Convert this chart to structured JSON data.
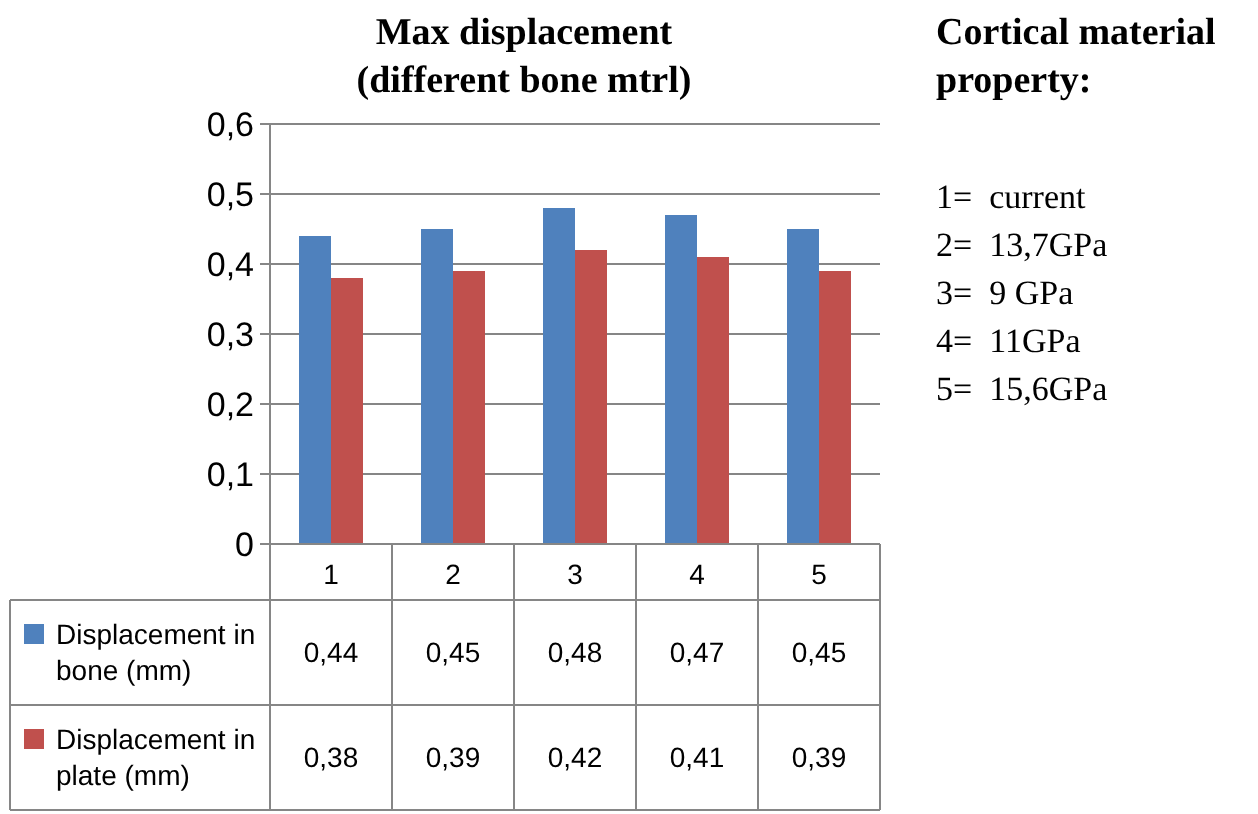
{
  "chart_data": {
    "type": "bar",
    "title": "Max displacement\n(different bone mtrl)",
    "categories": [
      "1",
      "2",
      "3",
      "4",
      "5"
    ],
    "series": [
      {
        "name": "Displacement in bone (mm)",
        "color": "#4f81bd",
        "values": [
          0.44,
          0.45,
          0.48,
          0.47,
          0.45
        ],
        "value_labels": [
          "0,44",
          "0,45",
          "0,48",
          "0,47",
          "0,45"
        ]
      },
      {
        "name": "Displacement in plate (mm)",
        "color": "#c0504d",
        "values": [
          0.38,
          0.39,
          0.42,
          0.41,
          0.39
        ],
        "value_labels": [
          "0,38",
          "0,39",
          "0,42",
          "0,41",
          "0,39"
        ]
      }
    ],
    "ylim": [
      0,
      0.6
    ],
    "yticks": [
      {
        "value": 0,
        "label": "0"
      },
      {
        "value": 0.1,
        "label": "0,1"
      },
      {
        "value": 0.2,
        "label": "0,2"
      },
      {
        "value": 0.3,
        "label": "0,3"
      },
      {
        "value": 0.4,
        "label": "0,4"
      },
      {
        "value": 0.5,
        "label": "0,5"
      },
      {
        "value": 0.6,
        "label": "0,6"
      }
    ],
    "grid": "y",
    "legend": "bottom left",
    "annotations": [
      "Cortical material\nproperty:",
      "1=  current",
      "2=  13,7GPa",
      "3=  9 GPa",
      "4=  11GPa",
      "5=  15,6GPa"
    ]
  }
}
